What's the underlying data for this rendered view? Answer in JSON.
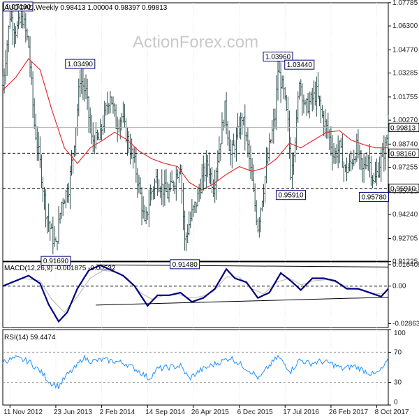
{
  "chart_data": [
    {
      "panel": "price",
      "type": "ohlc",
      "title": "AUDCAD,Weekly",
      "ohlc_readout": [
        "0.98413",
        "1.00004",
        "0.98397",
        "0.99813"
      ],
      "watermark": "ActionForex.com",
      "ylim": [
        0.9125,
        1.0778
      ],
      "y_ticks": [
        "1.07785",
        "1.06300",
        "1.04770",
        "1.03285",
        "1.01755",
        "1.00270",
        "0.98740",
        "0.97255",
        "0.95725",
        "0.94240",
        "0.92705",
        "0.91225"
      ],
      "x_ticks": [
        "11 Nov 2012",
        "23 Jun 2013",
        "2 Feb 2014",
        "14 Sep 2014",
        "26 Apr 2015",
        "6 Dec 2015",
        "17 Jul 2016",
        "26 Feb 2017",
        "8 Oct 2017"
      ],
      "last_price": "0.99813",
      "support_levels": [
        {
          "value": 0.9816,
          "label": "0.98160"
        },
        {
          "value": 0.9591,
          "label": "0.95910"
        }
      ],
      "annotations": [
        {
          "text": "1.07160",
          "date": "2012-11-11",
          "value": 1.0716
        },
        {
          "text": "0.91690",
          "date": "2013-06-23",
          "value": 0.9169
        },
        {
          "text": "1.03490",
          "date": "2013-10-20",
          "value": 1.0349
        },
        {
          "text": "0.91480",
          "date": "2015-03-15",
          "value": 0.9148
        },
        {
          "text": "1.03960",
          "date": "2016-06-12",
          "value": 1.0396
        },
        {
          "text": "1.03440",
          "date": "2016-09-25",
          "value": 1.0344
        },
        {
          "text": "0.95910",
          "date": "2016-08-14",
          "value": 0.9591
        },
        {
          "text": "0.95780",
          "date": "2017-09-24",
          "value": 0.9578
        }
      ],
      "series": [
        {
          "name": "",
          "type": "weekly-ohlc",
          "key_points": [
            [
              "2012-10-07",
              1.025
            ],
            [
              "2012-11-11",
              1.07
            ],
            [
              "2012-12-09",
              1.06
            ],
            [
              "2013-01-13",
              1.068
            ],
            [
              "2013-02-10",
              1.05
            ],
            [
              "2013-03-10",
              1.0
            ],
            [
              "2013-04-07",
              0.975
            ],
            [
              "2013-05-05",
              0.945
            ],
            [
              "2013-06-02",
              0.93
            ],
            [
              "2013-06-23",
              0.922
            ],
            [
              "2013-07-21",
              0.95
            ],
            [
              "2013-08-25",
              0.96
            ],
            [
              "2013-09-22",
              0.99
            ],
            [
              "2013-10-20",
              1.03
            ],
            [
              "2013-11-17",
              1.02
            ],
            [
              "2013-12-15",
              0.99
            ],
            [
              "2014-01-19",
              0.99
            ],
            [
              "2014-02-16",
              1.005
            ],
            [
              "2014-03-16",
              1.02
            ],
            [
              "2014-04-13",
              1.0
            ],
            [
              "2014-05-11",
              1.005
            ],
            [
              "2014-06-08",
              0.99
            ],
            [
              "2014-07-13",
              0.975
            ],
            [
              "2014-08-10",
              0.955
            ],
            [
              "2014-08-31",
              0.935
            ],
            [
              "2014-09-28",
              0.955
            ],
            [
              "2014-10-26",
              0.965
            ],
            [
              "2014-11-23",
              0.96
            ],
            [
              "2014-12-21",
              0.955
            ],
            [
              "2015-01-25",
              0.965
            ],
            [
              "2015-02-22",
              0.975
            ],
            [
              "2015-03-15",
              0.925
            ],
            [
              "2015-04-12",
              0.94
            ],
            [
              "2015-05-10",
              0.95
            ],
            [
              "2015-06-07",
              0.965
            ],
            [
              "2015-07-05",
              0.975
            ],
            [
              "2015-08-02",
              0.96
            ],
            [
              "2015-08-30",
              0.985
            ],
            [
              "2015-09-27",
              1.01
            ],
            [
              "2015-10-25",
              0.98
            ],
            [
              "2015-11-22",
              0.99
            ],
            [
              "2015-12-20",
              1.005
            ],
            [
              "2016-01-17",
              0.985
            ],
            [
              "2016-02-14",
              0.955
            ],
            [
              "2016-03-06",
              0.935
            ],
            [
              "2016-04-03",
              0.96
            ],
            [
              "2016-05-01",
              0.985
            ],
            [
              "2016-05-29",
              1.005
            ],
            [
              "2016-06-12",
              1.035
            ],
            [
              "2016-07-10",
              1.02
            ],
            [
              "2016-07-31",
              1.0
            ],
            [
              "2016-08-14",
              0.97
            ],
            [
              "2016-09-11",
              1.0
            ],
            [
              "2016-09-25",
              1.03
            ],
            [
              "2016-10-23",
              1.01
            ],
            [
              "2016-11-20",
              1.015
            ],
            [
              "2016-12-18",
              1.02
            ],
            [
              "2017-01-15",
              1.005
            ],
            [
              "2017-02-12",
              0.995
            ],
            [
              "2017-03-12",
              0.98
            ],
            [
              "2017-04-09",
              0.985
            ],
            [
              "2017-05-07",
              0.97
            ],
            [
              "2017-06-04",
              0.975
            ],
            [
              "2017-07-02",
              0.985
            ],
            [
              "2017-07-30",
              0.97
            ],
            [
              "2017-08-27",
              0.98
            ],
            [
              "2017-09-24",
              0.962
            ],
            [
              "2017-10-22",
              0.975
            ],
            [
              "2017-11-19",
              0.985
            ],
            [
              "2017-12-03",
              0.998
            ]
          ]
        },
        {
          "name": "",
          "type": "moving-average",
          "color": "#e23030",
          "key_points": [
            [
              "2012-10-07",
              1.022
            ],
            [
              "2012-12-09",
              1.03
            ],
            [
              "2013-02-10",
              1.042
            ],
            [
              "2013-04-07",
              1.035
            ],
            [
              "2013-06-02",
              1.01
            ],
            [
              "2013-08-04",
              0.985
            ],
            [
              "2013-10-06",
              0.975
            ],
            [
              "2013-12-08",
              0.985
            ],
            [
              "2014-02-09",
              0.99
            ],
            [
              "2014-04-06",
              0.995
            ],
            [
              "2014-06-08",
              0.99
            ],
            [
              "2014-08-03",
              0.983
            ],
            [
              "2014-10-05",
              0.978
            ],
            [
              "2014-12-07",
              0.975
            ],
            [
              "2015-02-08",
              0.973
            ],
            [
              "2015-04-05",
              0.963
            ],
            [
              "2015-06-07",
              0.958
            ],
            [
              "2015-08-02",
              0.962
            ],
            [
              "2015-10-04",
              0.968
            ],
            [
              "2015-12-06",
              0.973
            ],
            [
              "2016-02-07",
              0.97
            ],
            [
              "2016-04-03",
              0.972
            ],
            [
              "2016-06-05",
              0.978
            ],
            [
              "2016-08-07",
              0.988
            ],
            [
              "2016-10-02",
              0.985
            ],
            [
              "2016-12-04",
              0.99
            ],
            [
              "2017-02-05",
              0.995
            ],
            [
              "2017-04-09",
              0.996
            ],
            [
              "2017-06-04",
              0.99
            ],
            [
              "2017-08-06",
              0.987
            ],
            [
              "2017-10-01",
              0.985
            ],
            [
              "2017-12-03",
              0.985
            ]
          ]
        }
      ]
    },
    {
      "panel": "macd",
      "type": "line",
      "title": "MACD(12,26,9) -0.001875 -0.00532",
      "y_ticks": [
        "0.016409",
        "0.00",
        "-0.028636"
      ],
      "ylim": [
        -0.0316,
        0.0185
      ],
      "series": [
        {
          "name": "",
          "color": "#000080",
          "key_points": [
            [
              "2012-10-07",
              0.0
            ],
            [
              "2012-12-09",
              0.004
            ],
            [
              "2013-02-10",
              0.008
            ],
            [
              "2013-04-07",
              0.002
            ],
            [
              "2013-05-19",
              -0.014
            ],
            [
              "2013-07-07",
              -0.027
            ],
            [
              "2013-08-18",
              -0.02
            ],
            [
              "2013-10-06",
              -0.002
            ],
            [
              "2013-12-01",
              0.012
            ],
            [
              "2014-01-26",
              0.016
            ],
            [
              "2014-03-23",
              0.012
            ],
            [
              "2014-05-18",
              0.008
            ],
            [
              "2014-07-13",
              0.0
            ],
            [
              "2014-09-14",
              -0.015
            ],
            [
              "2014-11-02",
              -0.007
            ],
            [
              "2014-12-28",
              -0.007
            ],
            [
              "2015-02-22",
              -0.005
            ],
            [
              "2015-04-19",
              -0.012
            ],
            [
              "2015-06-14",
              -0.009
            ],
            [
              "2015-08-09",
              -0.002
            ],
            [
              "2015-10-04",
              0.013
            ],
            [
              "2015-11-15",
              0.006
            ],
            [
              "2016-01-10",
              0.003
            ],
            [
              "2016-03-06",
              -0.009
            ],
            [
              "2016-05-01",
              -0.005
            ],
            [
              "2016-06-26",
              0.01
            ],
            [
              "2016-08-14",
              0.004
            ],
            [
              "2016-10-02",
              -0.003
            ],
            [
              "2016-11-27",
              0.006
            ],
            [
              "2017-01-22",
              0.006
            ],
            [
              "2017-03-19",
              0.004
            ],
            [
              "2017-05-14",
              -0.002
            ],
            [
              "2017-07-09",
              -0.002
            ],
            [
              "2017-09-03",
              -0.005
            ],
            [
              "2017-10-29",
              -0.008
            ],
            [
              "2017-12-03",
              -0.002
            ]
          ]
        },
        {
          "name": "",
          "color": "#c0c0c0",
          "key_points": [
            [
              "2012-10-07",
              0.0
            ],
            [
              "2013-01-13",
              0.006
            ],
            [
              "2013-04-07",
              0.004
            ],
            [
              "2013-06-02",
              -0.01
            ],
            [
              "2013-08-04",
              -0.02
            ],
            [
              "2013-10-06",
              -0.008
            ],
            [
              "2013-12-08",
              0.006
            ],
            [
              "2014-02-09",
              0.012
            ],
            [
              "2014-04-06",
              0.011
            ],
            [
              "2014-06-08",
              0.006
            ],
            [
              "2014-08-10",
              -0.005
            ],
            [
              "2014-10-05",
              -0.01
            ],
            [
              "2014-12-07",
              -0.007
            ],
            [
              "2015-02-08",
              -0.006
            ],
            [
              "2015-04-05",
              -0.009
            ],
            [
              "2015-06-07",
              -0.008
            ],
            [
              "2015-08-02",
              -0.004
            ],
            [
              "2015-10-04",
              0.007
            ],
            [
              "2015-12-06",
              0.007
            ],
            [
              "2016-02-07",
              -0.002
            ],
            [
              "2016-04-03",
              -0.006
            ],
            [
              "2016-06-05",
              0.003
            ],
            [
              "2016-08-07",
              0.006
            ],
            [
              "2016-10-02",
              0.001
            ],
            [
              "2016-12-04",
              0.004
            ],
            [
              "2017-02-05",
              0.005
            ],
            [
              "2017-04-09",
              0.002
            ],
            [
              "2017-06-04",
              -0.002
            ],
            [
              "2017-08-06",
              -0.003
            ],
            [
              "2017-10-01",
              -0.006
            ],
            [
              "2017-12-03",
              -0.005
            ]
          ]
        }
      ],
      "trendlines": [
        {
          "from": [
            "2014-01-05",
            0.0162
          ],
          "to": [
            "2017-12-03",
            0.0146
          ]
        },
        {
          "from": [
            "2014-01-05",
            -0.0145
          ],
          "to": [
            "2017-12-03",
            -0.0085
          ]
        }
      ]
    },
    {
      "panel": "rsi",
      "type": "line",
      "title": "RSI(14) 59.4474",
      "y_ticks": [
        "100",
        "70",
        "30",
        "0"
      ],
      "ylim": [
        0,
        100
      ],
      "levels": [
        70,
        30
      ],
      "series": [
        {
          "name": "",
          "color": "#1e90ff",
          "key_points": [
            [
              "2012-10-07",
              58
            ],
            [
              "2012-12-09",
              62
            ],
            [
              "2013-02-10",
              58
            ],
            [
              "2013-04-07",
              45
            ],
            [
              "2013-05-26",
              30
            ],
            [
              "2013-07-07",
              25
            ],
            [
              "2013-08-18",
              40
            ],
            [
              "2013-09-29",
              50
            ],
            [
              "2013-11-03",
              63
            ],
            [
              "2013-12-15",
              58
            ],
            [
              "2014-02-09",
              60
            ],
            [
              "2014-04-06",
              58
            ],
            [
              "2014-06-01",
              55
            ],
            [
              "2014-08-03",
              45
            ],
            [
              "2014-09-21",
              35
            ],
            [
              "2014-11-02",
              48
            ],
            [
              "2014-12-28",
              50
            ],
            [
              "2015-02-22",
              52
            ],
            [
              "2015-04-05",
              35
            ],
            [
              "2015-05-24",
              45
            ],
            [
              "2015-07-19",
              52
            ],
            [
              "2015-09-13",
              58
            ],
            [
              "2015-10-25",
              63
            ],
            [
              "2015-12-06",
              55
            ],
            [
              "2016-01-31",
              45
            ],
            [
              "2016-03-13",
              35
            ],
            [
              "2016-04-24",
              50
            ],
            [
              "2016-06-12",
              64
            ],
            [
              "2016-08-14",
              45
            ],
            [
              "2016-09-25",
              60
            ],
            [
              "2016-11-13",
              55
            ],
            [
              "2017-01-08",
              58
            ],
            [
              "2017-02-26",
              55
            ],
            [
              "2017-04-23",
              48
            ],
            [
              "2017-06-18",
              52
            ],
            [
              "2017-08-13",
              45
            ],
            [
              "2017-09-24",
              40
            ],
            [
              "2017-10-29",
              46
            ],
            [
              "2017-12-03",
              59
            ]
          ]
        }
      ]
    }
  ]
}
